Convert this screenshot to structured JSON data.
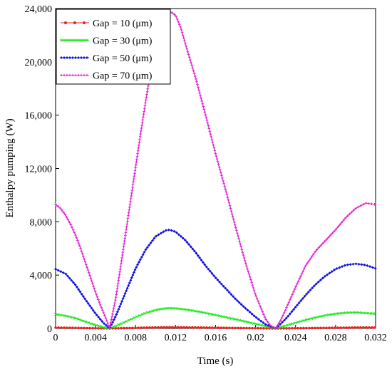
{
  "chart_data": {
    "type": "line",
    "title": "",
    "xlabel": "Time (s)",
    "ylabel": "Enthalpy pumping (W)",
    "xlim": [
      0,
      0.032
    ],
    "ylim": [
      0,
      24000
    ],
    "x_ticks": [
      0,
      0.004,
      0.008,
      0.012,
      0.016,
      0.02,
      0.024,
      0.028,
      0.032
    ],
    "x_tick_labels": [
      "0",
      "0.004",
      "0.008",
      "0.012",
      "0.016",
      "0.02",
      "0.024",
      "0.028",
      "0.032"
    ],
    "y_ticks": [
      0,
      4000,
      8000,
      12000,
      16000,
      20000,
      24000
    ],
    "y_tick_labels": [
      "0",
      "4,000",
      "8,000",
      "12,000",
      "16,000",
      "20,000",
      "24,000"
    ],
    "grid": false,
    "legend_position": "top-left",
    "series": [
      {
        "name": "Gap = 10 (μm)",
        "color": "#e8201c",
        "marker": "circle",
        "x": [
          0,
          0.0054,
          0.0113,
          0.022,
          0.031,
          0.032
        ],
        "y": [
          60,
          0,
          90,
          0,
          70,
          60
        ]
      },
      {
        "name": "Gap = 30 (μm)",
        "color": "#18e818",
        "marker": "cross",
        "x": [
          0,
          0.001,
          0.002,
          0.003,
          0.004,
          0.0048,
          0.0054,
          0.006,
          0.007,
          0.008,
          0.009,
          0.01,
          0.011,
          0.0115,
          0.012,
          0.013,
          0.014,
          0.015,
          0.016,
          0.017,
          0.018,
          0.019,
          0.02,
          0.021,
          0.022,
          0.023,
          0.024,
          0.025,
          0.026,
          0.027,
          0.028,
          0.029,
          0.03,
          0.031,
          0.032
        ],
        "y": [
          1050,
          950,
          760,
          500,
          250,
          80,
          0,
          180,
          500,
          850,
          1150,
          1380,
          1500,
          1520,
          1500,
          1420,
          1300,
          1160,
          1000,
          840,
          680,
          510,
          340,
          170,
          10,
          200,
          420,
          630,
          820,
          980,
          1100,
          1170,
          1200,
          1150,
          1100
        ]
      },
      {
        "name": "Gap = 50 (μm)",
        "color": "#1010e0",
        "marker": "diamond",
        "x": [
          0,
          0.001,
          0.002,
          0.003,
          0.004,
          0.0048,
          0.0054,
          0.006,
          0.007,
          0.008,
          0.009,
          0.01,
          0.011,
          0.0114,
          0.012,
          0.013,
          0.014,
          0.015,
          0.016,
          0.017,
          0.018,
          0.019,
          0.02,
          0.021,
          0.022,
          0.023,
          0.024,
          0.025,
          0.026,
          0.027,
          0.028,
          0.029,
          0.03,
          0.031,
          0.032
        ],
        "y": [
          4450,
          4100,
          3250,
          2150,
          1100,
          400,
          0,
          900,
          2700,
          4500,
          5900,
          6900,
          7350,
          7400,
          7250,
          6600,
          5700,
          4700,
          3800,
          3000,
          2200,
          1500,
          850,
          300,
          0,
          700,
          1600,
          2500,
          3300,
          3950,
          4450,
          4750,
          4850,
          4750,
          4500
        ]
      },
      {
        "name": "Gap = 70 (μm)",
        "color": "#e21fd2",
        "marker": "plus",
        "x": [
          0,
          0.0005,
          0.001,
          0.0015,
          0.002,
          0.0025,
          0.003,
          0.0035,
          0.004,
          0.0045,
          0.005,
          0.0054,
          0.006,
          0.0065,
          0.007,
          0.0075,
          0.008,
          0.0085,
          0.009,
          0.0095,
          0.01,
          0.0105,
          0.011,
          0.0114,
          0.012,
          0.0125,
          0.013,
          0.014,
          0.015,
          0.016,
          0.017,
          0.018,
          0.019,
          0.02,
          0.021,
          0.0215,
          0.022,
          0.0225,
          0.023,
          0.024,
          0.025,
          0.026,
          0.027,
          0.028,
          0.029,
          0.03,
          0.031,
          0.032
        ],
        "y": [
          9300,
          9000,
          8500,
          7800,
          7000,
          6000,
          4900,
          3800,
          2700,
          1700,
          800,
          0,
          2200,
          4600,
          7100,
          9600,
          12100,
          14600,
          17000,
          19300,
          21300,
          22800,
          23650,
          23800,
          23500,
          22600,
          21300,
          18800,
          16000,
          13100,
          10400,
          7600,
          4900,
          2500,
          700,
          200,
          0,
          600,
          1400,
          3100,
          4700,
          5800,
          6600,
          7400,
          8300,
          9000,
          9400,
          9300
        ]
      }
    ]
  }
}
